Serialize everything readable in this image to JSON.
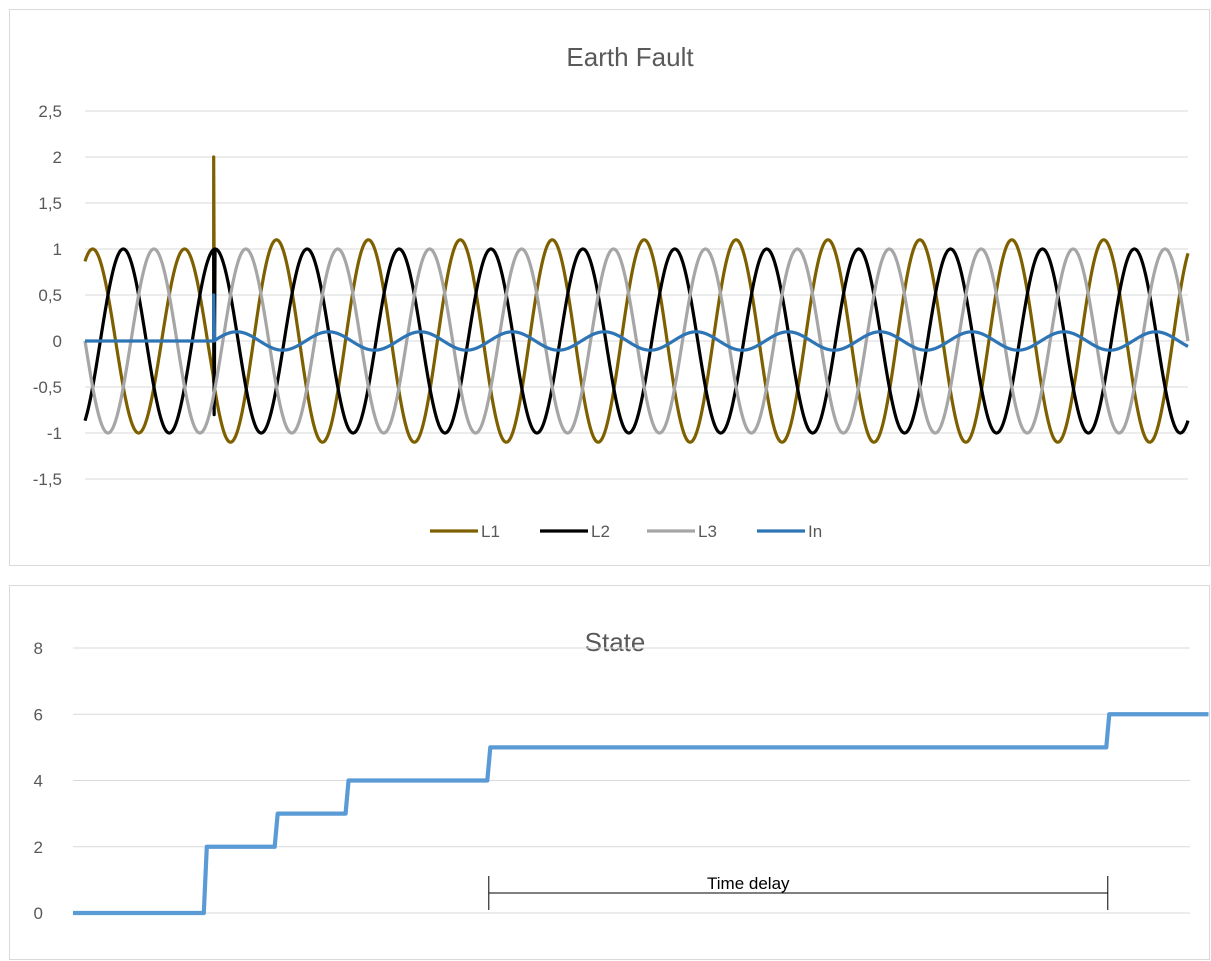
{
  "chart_data": [
    {
      "type": "line",
      "title": "Earth Fault",
      "xlabel": "",
      "ylabel": "",
      "x_range": [
        0,
        12
      ],
      "ylim": [
        -2,
        2.5
      ],
      "yticks": [
        2.5,
        2,
        1.5,
        1,
        0.5,
        0,
        -0.5,
        -1,
        -1.5
      ],
      "ytick_labels": [
        "2,5",
        "2",
        "1,5",
        "1",
        "0,5",
        "0",
        "-0,5",
        "-1",
        "-1,5"
      ],
      "grid": true,
      "legend": "bottom",
      "fault_at": 1.4,
      "cycles": 12,
      "series": [
        {
          "name": "L1",
          "color": "#7f6000",
          "phase_deg": 60,
          "amplitude_before": 1.0,
          "amplitude_after": 1.1,
          "spike_peak": 2
        },
        {
          "name": "L2",
          "color": "#000000",
          "phase_deg": -60,
          "amplitude_before": 1.0,
          "amplitude_after": 1.0,
          "spike_dip": -0.8
        },
        {
          "name": "L3",
          "color": "#a6a6a6",
          "phase_deg": 180,
          "amplitude_before": 1.0,
          "amplitude_after": 1.0
        },
        {
          "name": "In",
          "color": "#2e75b6",
          "amplitude_before": 0,
          "amplitude_after": 0.1,
          "spike_peak": 0.5
        }
      ]
    },
    {
      "type": "line",
      "title": "State",
      "xlabel": "",
      "ylabel": "",
      "x_range": [
        0,
        12
      ],
      "ylim": [
        0,
        8
      ],
      "yticks": [
        8,
        6,
        4,
        2,
        0
      ],
      "ytick_labels": [
        "8",
        "6",
        "4",
        "2",
        "0"
      ],
      "grid": true,
      "legend": "none",
      "color": "#5b9bd5",
      "steps": [
        {
          "x": 0,
          "y": 0
        },
        {
          "x": 1.4,
          "y": 2
        },
        {
          "x": 2.15,
          "y": 3
        },
        {
          "x": 2.9,
          "y": 4
        },
        {
          "x": 4.4,
          "y": 5
        },
        {
          "x": 10.95,
          "y": 6
        },
        {
          "x": 12,
          "y": 6
        }
      ],
      "annotation": {
        "text": "Time delay",
        "x_start": 4.4,
        "x_end": 10.95
      }
    }
  ]
}
